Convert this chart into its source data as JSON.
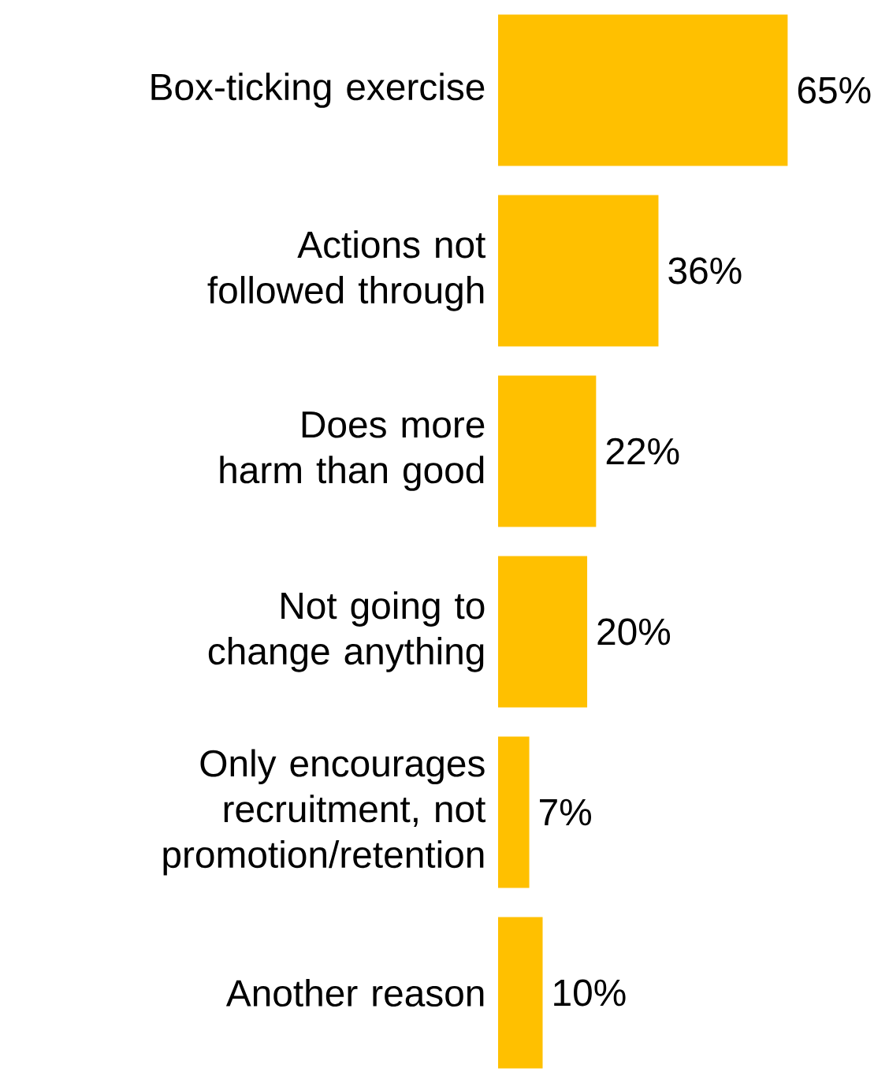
{
  "chart_data": {
    "type": "bar",
    "orientation": "horizontal",
    "categories": [
      "Box-ticking exercise",
      "Actions not followed through",
      "Does more harm than good",
      "Not going to change anything",
      "Only encourages recruitment, not promotion/retention",
      "Another reason"
    ],
    "values": [
      65,
      36,
      22,
      20,
      7,
      10
    ],
    "value_labels": [
      "65%",
      "36%",
      "22%",
      "20%",
      "7%",
      "10%"
    ],
    "color": "#ffc000"
  }
}
